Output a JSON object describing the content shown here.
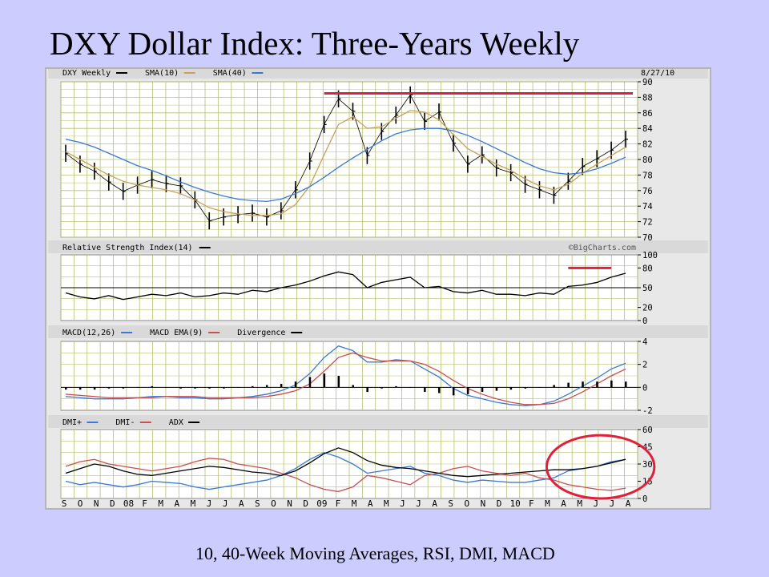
{
  "slide": {
    "title": "DXY Dollar Index:  Three-Years Weekly",
    "subtitle": "10, 40-Week Moving Averages, RSI, DMI, MACD"
  },
  "colors": {
    "background": "#ccccff",
    "panel_bg": "#ffffff",
    "header_bg": "#d9d9d9",
    "grid": "#b8c070",
    "price": "#000000",
    "sma10": "#c8a25a",
    "sma40": "#3a78d8",
    "resistance": "#e0203a",
    "macd": "#3a78d8",
    "macd_ema": "#c85050",
    "divergence": "#000000",
    "dmi_plus": "#3a78d8",
    "dmi_minus": "#c85050",
    "adx": "#000000",
    "highlight": "#e0203a"
  },
  "chart_data": [
    {
      "type": "line",
      "panel": "price",
      "legend_items": [
        {
          "name": "DXY Weekly",
          "color": "#000000"
        },
        {
          "name": "SMA(10)",
          "color": "#c8a25a"
        },
        {
          "name": "SMA(40)",
          "color": "#3a78d8"
        }
      ],
      "date_label": "8/27/10",
      "ylim": [
        70,
        90
      ],
      "yticks": [
        "70",
        "72",
        "74",
        "76",
        "78",
        "80",
        "82",
        "84",
        "86",
        "88",
        "90"
      ],
      "grid": true,
      "x": [
        0,
        4,
        8,
        12,
        16,
        20,
        24,
        28,
        32,
        36,
        40,
        44,
        48,
        52,
        56,
        60,
        64,
        68,
        72,
        76,
        80,
        84,
        88,
        92,
        96,
        100,
        104,
        108,
        112,
        116,
        120,
        124,
        128,
        132,
        136,
        140,
        144,
        148,
        152,
        156
      ],
      "series": [
        {
          "name": "DXY Weekly",
          "values": [
            80.8,
            79.4,
            78.5,
            77.1,
            75.9,
            76.7,
            77.4,
            76.9,
            76.6,
            74.8,
            72.1,
            72.6,
            72.9,
            73.1,
            72.6,
            73.4,
            76.1,
            79.8,
            84.5,
            87.8,
            86.2,
            80.5,
            83.6,
            85.7,
            88.3,
            84.9,
            86.1,
            82.1,
            79.4,
            80.6,
            78.9,
            78.3,
            76.8,
            76.1,
            75.4,
            77.2,
            79.1,
            80.1,
            81.2,
            82.6
          ]
        },
        {
          "name": "SMA(10)",
          "values": [
            81.0,
            80.0,
            79.0,
            78.0,
            77.2,
            76.7,
            76.4,
            76.1,
            75.6,
            74.8,
            73.8,
            73.3,
            73.0,
            72.8,
            72.8,
            73.0,
            74.2,
            76.6,
            80.6,
            84.5,
            85.5,
            84.0,
            84.2,
            85.3,
            86.3,
            86.1,
            85.1,
            83.2,
            81.4,
            80.4,
            79.4,
            78.6,
            77.5,
            76.6,
            76.1,
            76.8,
            78.2,
            79.4,
            80.5,
            81.6
          ]
        },
        {
          "name": "SMA(40)",
          "values": [
            82.6,
            82.2,
            81.6,
            80.8,
            80.0,
            79.2,
            78.6,
            77.9,
            77.1,
            76.4,
            75.8,
            75.3,
            74.9,
            74.7,
            74.6,
            74.9,
            75.6,
            76.5,
            77.7,
            79.0,
            80.2,
            81.3,
            82.4,
            83.3,
            83.8,
            84.0,
            84.0,
            83.7,
            83.1,
            82.3,
            81.4,
            80.5,
            79.6,
            78.8,
            78.3,
            78.1,
            78.3,
            78.8,
            79.5,
            80.3
          ]
        }
      ],
      "annotations": [
        {
          "type": "resistance_line",
          "x": [
            72,
            158
          ],
          "y": 88.5,
          "color": "#e0203a"
        }
      ]
    },
    {
      "type": "line",
      "panel": "rsi",
      "legend_items": [
        {
          "name": "Relative Strength Index(14)",
          "color": "#000000"
        }
      ],
      "source": "©BigCharts.com",
      "ylim": [
        0,
        100
      ],
      "yticks": [
        "0",
        "20",
        "50",
        "80",
        "100"
      ],
      "reference_line": 50,
      "x": [
        0,
        4,
        8,
        12,
        16,
        20,
        24,
        28,
        32,
        36,
        40,
        44,
        48,
        52,
        56,
        60,
        64,
        68,
        72,
        76,
        80,
        84,
        88,
        92,
        96,
        100,
        104,
        108,
        112,
        116,
        120,
        124,
        128,
        132,
        136,
        140,
        144,
        148,
        152,
        156
      ],
      "series": [
        {
          "name": "Relative Strength Index(14)",
          "values": [
            42,
            36,
            33,
            38,
            32,
            36,
            40,
            38,
            42,
            36,
            38,
            42,
            40,
            46,
            44,
            50,
            54,
            60,
            68,
            74,
            70,
            50,
            58,
            62,
            66,
            50,
            52,
            44,
            42,
            46,
            40,
            40,
            38,
            42,
            40,
            52,
            54,
            58,
            66,
            72
          ]
        }
      ],
      "annotations": [
        {
          "type": "resistance_line",
          "x": [
            140,
            152
          ],
          "y": 80,
          "color": "#e0203a"
        }
      ]
    },
    {
      "type": "line",
      "panel": "macd",
      "legend_items": [
        {
          "name": "MACD(12,26)",
          "color": "#3a78d8"
        },
        {
          "name": "MACD EMA(9)",
          "color": "#c85050"
        },
        {
          "name": "Divergence",
          "color": "#000000"
        }
      ],
      "ylim": [
        -2,
        4
      ],
      "yticks": [
        "-2",
        "0",
        "2",
        "4"
      ],
      "x": [
        0,
        4,
        8,
        12,
        16,
        20,
        24,
        28,
        32,
        36,
        40,
        44,
        48,
        52,
        56,
        60,
        64,
        68,
        72,
        76,
        80,
        84,
        88,
        92,
        96,
        100,
        104,
        108,
        112,
        116,
        120,
        124,
        128,
        132,
        136,
        140,
        144,
        148,
        152,
        156
      ],
      "series": [
        {
          "name": "MACD(12,26)",
          "values": [
            -0.8,
            -0.9,
            -1.0,
            -1.0,
            -1.0,
            -0.9,
            -0.8,
            -0.8,
            -0.9,
            -0.9,
            -1.0,
            -1.0,
            -0.9,
            -0.8,
            -0.6,
            -0.3,
            0.2,
            1.2,
            2.6,
            3.6,
            3.2,
            2.2,
            2.2,
            2.4,
            2.3,
            1.6,
            0.9,
            -0.1,
            -0.7,
            -1.0,
            -1.3,
            -1.5,
            -1.6,
            -1.5,
            -1.2,
            -0.6,
            0.1,
            0.8,
            1.6,
            2.1
          ]
        },
        {
          "name": "MACD EMA(9)",
          "values": [
            -0.6,
            -0.7,
            -0.8,
            -0.9,
            -0.9,
            -0.9,
            -0.9,
            -0.8,
            -0.8,
            -0.8,
            -0.9,
            -0.9,
            -0.9,
            -0.9,
            -0.8,
            -0.6,
            -0.3,
            0.3,
            1.4,
            2.6,
            3.0,
            2.6,
            2.3,
            2.3,
            2.3,
            2.0,
            1.4,
            0.6,
            -0.1,
            -0.6,
            -1.0,
            -1.3,
            -1.5,
            -1.5,
            -1.4,
            -1.0,
            -0.4,
            0.3,
            1.0,
            1.6
          ]
        },
        {
          "name": "Divergence",
          "values": [
            -0.2,
            -0.2,
            -0.2,
            -0.1,
            -0.1,
            0.0,
            0.1,
            0.0,
            -0.1,
            -0.1,
            -0.1,
            -0.1,
            0.0,
            0.1,
            0.2,
            0.3,
            0.5,
            0.9,
            1.2,
            1.0,
            0.2,
            -0.4,
            -0.1,
            0.1,
            0.0,
            -0.4,
            -0.5,
            -0.7,
            -0.6,
            -0.4,
            -0.3,
            -0.2,
            -0.1,
            0.0,
            0.2,
            0.4,
            0.5,
            0.5,
            0.6,
            0.5
          ]
        }
      ]
    },
    {
      "type": "line",
      "panel": "dmi",
      "legend_items": [
        {
          "name": "DMI+",
          "color": "#3a78d8"
        },
        {
          "name": "DMI-",
          "color": "#c85050"
        },
        {
          "name": "ADX",
          "color": "#000000"
        }
      ],
      "ylim": [
        0,
        60
      ],
      "yticks": [
        "0",
        "15",
        "30",
        "45",
        "60"
      ],
      "xticks": [
        "S",
        "O",
        "N",
        "D",
        "08",
        "F",
        "M",
        "A",
        "M",
        "J",
        "J",
        "A",
        "S",
        "O",
        "N",
        "D",
        "09",
        "F",
        "M",
        "A",
        "M",
        "J",
        "J",
        "A",
        "S",
        "O",
        "N",
        "D",
        "10",
        "F",
        "M",
        "A",
        "M",
        "J",
        "J",
        "A"
      ],
      "x": [
        0,
        4,
        8,
        12,
        16,
        20,
        24,
        28,
        32,
        36,
        40,
        44,
        48,
        52,
        56,
        60,
        64,
        68,
        72,
        76,
        80,
        84,
        88,
        92,
        96,
        100,
        104,
        108,
        112,
        116,
        120,
        124,
        128,
        132,
        136,
        140,
        144,
        148,
        152,
        156
      ],
      "series": [
        {
          "name": "DMI+",
          "values": [
            15,
            12,
            14,
            12,
            10,
            12,
            15,
            14,
            13,
            10,
            8,
            10,
            12,
            14,
            16,
            20,
            26,
            34,
            40,
            36,
            30,
            22,
            24,
            26,
            28,
            22,
            20,
            16,
            14,
            16,
            15,
            14,
            14,
            16,
            18,
            24,
            26,
            28,
            32,
            34
          ]
        },
        {
          "name": "DMI-",
          "values": [
            28,
            32,
            34,
            30,
            28,
            26,
            24,
            26,
            28,
            32,
            35,
            34,
            30,
            28,
            26,
            22,
            18,
            12,
            8,
            6,
            10,
            20,
            18,
            15,
            12,
            20,
            22,
            26,
            28,
            24,
            22,
            20,
            22,
            18,
            16,
            12,
            10,
            8,
            7,
            9
          ]
        },
        {
          "name": "ADX",
          "values": [
            22,
            26,
            30,
            28,
            24,
            21,
            20,
            22,
            24,
            26,
            28,
            27,
            25,
            23,
            22,
            20,
            24,
            31,
            39,
            44,
            40,
            33,
            29,
            27,
            26,
            24,
            22,
            20,
            19,
            20,
            21,
            22,
            23,
            24,
            25,
            25,
            26,
            28,
            31,
            34
          ]
        }
      ],
      "annotations": [
        {
          "type": "ellipse_highlight",
          "x": [
            134,
            164
          ],
          "y": [
            0,
            55
          ],
          "color": "#e0203a"
        }
      ]
    }
  ]
}
